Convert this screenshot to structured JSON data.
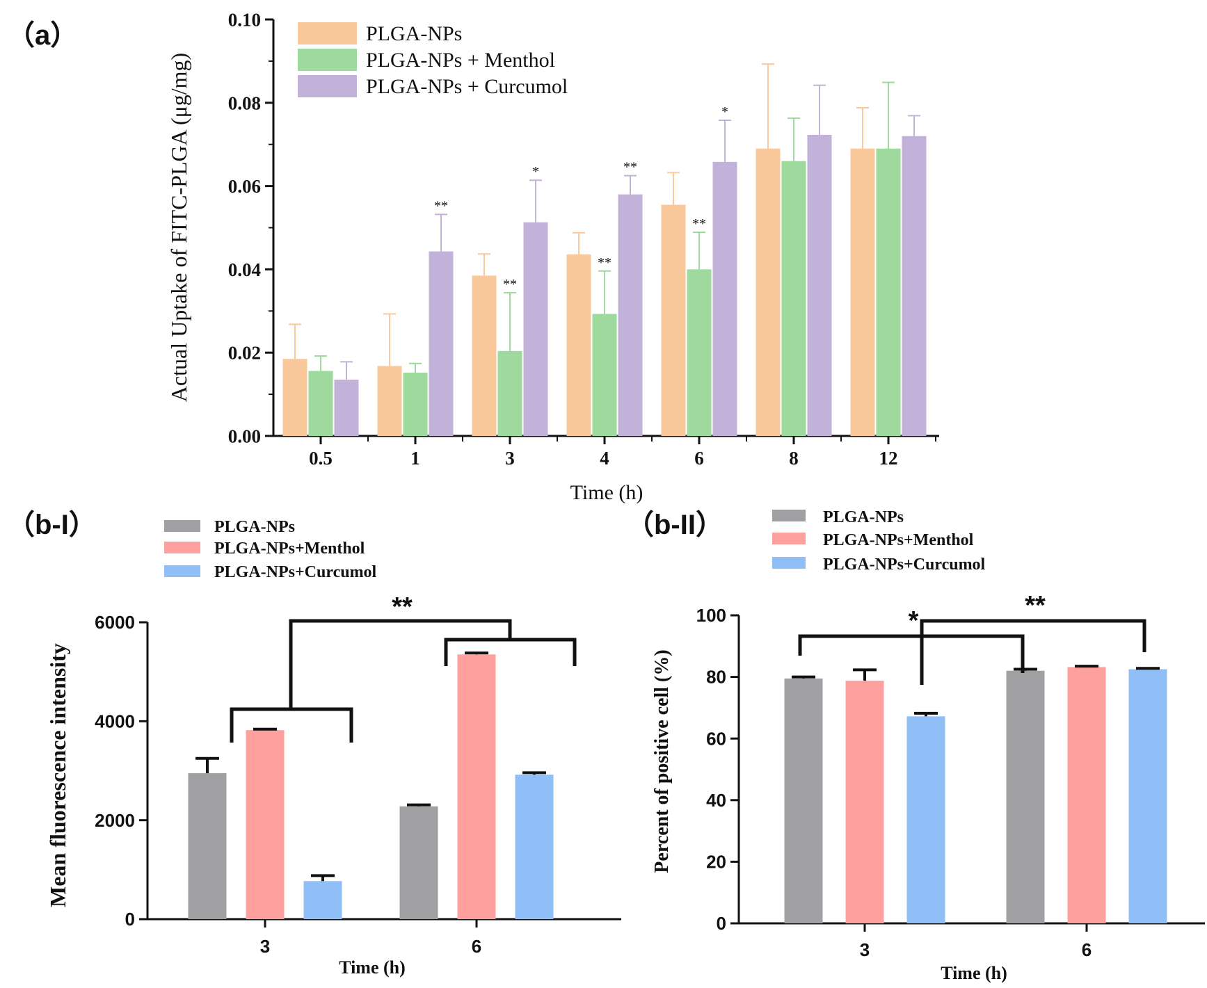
{
  "chart_data": [
    {
      "id": "a",
      "panel_label": "（a）",
      "type": "bar",
      "ylabel": "Actual Uptake of FITC-PLGA (μg/mg)",
      "xlabel": "Time (h)",
      "categories": [
        "0.5",
        "1",
        "3",
        "4",
        "6",
        "8",
        "12"
      ],
      "ylim": [
        0,
        0.1
      ],
      "yticks": [
        "0.00",
        "0.02",
        "0.04",
        "0.06",
        "0.08",
        "0.10"
      ],
      "ytick_values": [
        0,
        0.02,
        0.04,
        0.06,
        0.08,
        0.1
      ],
      "legend_position": "top-left",
      "series": [
        {
          "name": "PLGA-NPs",
          "color": "#F9C99B",
          "values": [
            0.0185,
            0.0168,
            0.0385,
            0.0436,
            0.0555,
            0.069,
            0.069
          ],
          "errors": [
            0.0083,
            0.0125,
            0.0052,
            0.0052,
            0.0077,
            0.0203,
            0.0098
          ]
        },
        {
          "name": "PLGA-NPs + Menthol",
          "color": "#9ED99D",
          "values": [
            0.0156,
            0.0152,
            0.0204,
            0.0293,
            0.04,
            0.066,
            0.069
          ],
          "errors": [
            0.0036,
            0.0022,
            0.014,
            0.0103,
            0.0089,
            0.0103,
            0.0159
          ]
        },
        {
          "name": "PLGA-NPs + Curcumol",
          "color": "#C2B1D8",
          "values": [
            0.0135,
            0.0443,
            0.0513,
            0.058,
            0.0658,
            0.0723,
            0.072
          ],
          "errors": [
            0.0043,
            0.0089,
            0.0101,
            0.0045,
            0.01,
            0.0119,
            0.0049
          ]
        }
      ],
      "significance": [
        {
          "category": "1",
          "series": "PLGA-NPs + Curcumol",
          "label": "**"
        },
        {
          "category": "3",
          "series": "PLGA-NPs + Menthol",
          "label": "**"
        },
        {
          "category": "3",
          "series": "PLGA-NPs + Curcumol",
          "label": "*"
        },
        {
          "category": "4",
          "series": "PLGA-NPs + Menthol",
          "label": "**"
        },
        {
          "category": "4",
          "series": "PLGA-NPs + Curcumol",
          "label": "**"
        },
        {
          "category": "6",
          "series": "PLGA-NPs + Menthol",
          "label": "**"
        },
        {
          "category": "6",
          "series": "PLGA-NPs + Curcumol",
          "label": "*"
        }
      ]
    },
    {
      "id": "b1",
      "panel_label": "（b-I）",
      "type": "bar",
      "ylabel": "Mean fluorescence intensity",
      "xlabel": "Time (h)",
      "categories": [
        "3",
        "6"
      ],
      "ylim": [
        0,
        6000
      ],
      "yticks": [
        "0",
        "2000",
        "4000",
        "6000"
      ],
      "ytick_values": [
        0,
        2000,
        4000,
        6000
      ],
      "legend_position": "top",
      "series": [
        {
          "name": "PLGA-NPs",
          "color": "#A0A0A3",
          "values": [
            2950,
            2280
          ],
          "errors": [
            300,
            30
          ]
        },
        {
          "name": "PLGA-NPs+Menthol",
          "color": "#FDA09E",
          "values": [
            3820,
            5350
          ],
          "errors": [
            20,
            30
          ]
        },
        {
          "name": "PLGA-NPs+Curcumol",
          "color": "#8FBFF6",
          "values": [
            770,
            2920
          ],
          "errors": [
            110,
            40
          ]
        }
      ],
      "significance_label": "**"
    },
    {
      "id": "b2",
      "panel_label": "（b-II）",
      "type": "bar",
      "ylabel": "Percent of positive cell (%)",
      "xlabel": "Time (h)",
      "categories": [
        "3",
        "6"
      ],
      "ylim": [
        0,
        100
      ],
      "yticks": [
        "0",
        "20",
        "40",
        "60",
        "80",
        "100"
      ],
      "ytick_values": [
        0,
        20,
        40,
        60,
        80,
        100
      ],
      "legend_position": "top",
      "series": [
        {
          "name": "PLGA-NPs",
          "color": "#A0A0A3",
          "values": [
            79.5,
            82.0
          ],
          "errors": [
            0.5,
            0.5
          ]
        },
        {
          "name": "PLGA-NPs+Menthol",
          "color": "#FDA09E",
          "values": [
            78.8,
            83.2
          ],
          "errors": [
            3.5,
            0.3
          ]
        },
        {
          "name": "PLGA-NPs+Curcumol",
          "color": "#8FBFF6",
          "values": [
            67.2,
            82.5
          ],
          "errors": [
            1.0,
            0.3
          ]
        }
      ],
      "significance_labels": [
        "*",
        "**"
      ]
    }
  ]
}
